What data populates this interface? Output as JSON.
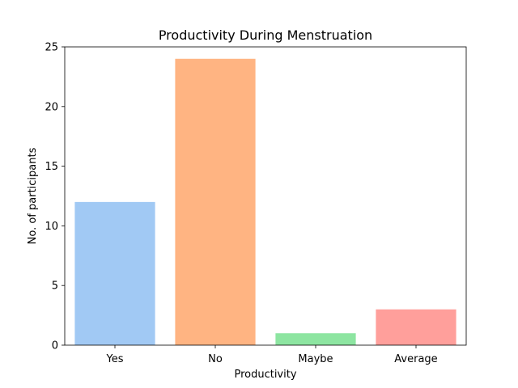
{
  "chart_data": {
    "type": "bar",
    "title": "Productivity During Menstruation",
    "xlabel": "Productivity",
    "ylabel": "No. of participants",
    "categories": [
      "Yes",
      "No",
      "Maybe",
      "Average"
    ],
    "values": [
      12,
      24,
      1,
      3
    ],
    "colors": [
      "#a1c9f4",
      "#ffb482",
      "#8de5a1",
      "#ff9f9b"
    ],
    "ylim": [
      0,
      25
    ],
    "yticks": [
      0,
      5,
      10,
      15,
      20,
      25
    ],
    "grid": false,
    "legend": "none"
  }
}
